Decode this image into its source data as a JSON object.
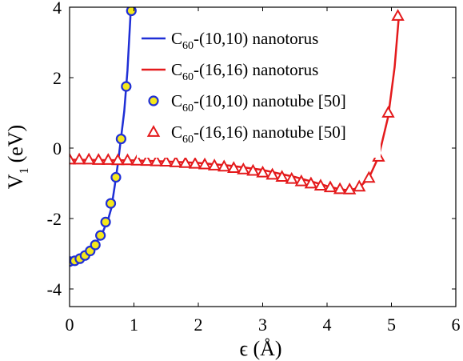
{
  "chart_data": {
    "type": "line",
    "xlabel": "ϵ (Å)",
    "ylabel": "V",
    "ylabel_sub": "1",
    "ylabel_unit": "(eV)",
    "xlim": [
      0,
      6
    ],
    "ylim": [
      -4.5,
      4
    ],
    "xticks": [
      0,
      1,
      2,
      3,
      4,
      5,
      6
    ],
    "yticks": [
      -4,
      -2,
      0,
      2,
      4
    ],
    "grid": false,
    "legend_position": "top-right",
    "series": [
      {
        "name": "C60-(10,10) nanotorus",
        "name_parts": [
          "C",
          "60",
          "-(10,10) nanotorus"
        ],
        "kind": "line",
        "color": "#1f2fd6",
        "x": [
          0,
          0.1,
          0.2,
          0.3,
          0.4,
          0.5,
          0.6,
          0.65,
          0.7,
          0.75,
          0.8,
          0.85,
          0.9,
          0.95
        ],
        "values": [
          -3.22,
          -3.18,
          -3.08,
          -2.92,
          -2.72,
          -2.45,
          -2.02,
          -1.7,
          -1.1,
          -0.45,
          0.3,
          1.05,
          2.2,
          3.9
        ]
      },
      {
        "name": "C60-(16,16) nanotorus",
        "name_parts": [
          "C",
          "60",
          "-(16,16) nanotorus"
        ],
        "kind": "line",
        "color": "#e41a1c",
        "x": [
          0,
          0.5,
          1.0,
          1.5,
          2.0,
          2.5,
          3.0,
          3.5,
          3.8,
          4.0,
          4.2,
          4.35,
          4.5,
          4.65,
          4.8,
          4.95,
          5.05,
          5.12
        ],
        "values": [
          -0.33,
          -0.34,
          -0.35,
          -0.38,
          -0.42,
          -0.5,
          -0.62,
          -0.82,
          -0.97,
          -1.08,
          -1.17,
          -1.2,
          -1.12,
          -0.85,
          -0.25,
          0.9,
          2.3,
          3.85
        ]
      },
      {
        "name": "C60-(10,10) nanotube [50]",
        "name_parts": [
          "C",
          "60",
          "-(10,10) nanotube [50]"
        ],
        "kind": "marker-circle",
        "color": "#1f2fd6",
        "fill": "#f5e81c",
        "x": [
          0,
          0.08,
          0.16,
          0.24,
          0.32,
          0.4,
          0.48,
          0.56,
          0.64,
          0.72,
          0.8,
          0.88,
          0.96
        ],
        "values": [
          -3.22,
          -3.2,
          -3.14,
          -3.05,
          -2.92,
          -2.75,
          -2.48,
          -2.1,
          -1.57,
          -0.83,
          0.26,
          1.75,
          3.9
        ]
      },
      {
        "name": "C60-(16,16) nanotube [50]",
        "name_parts": [
          "C",
          "60",
          "-(16,16) nanotube [50]"
        ],
        "kind": "marker-triangle",
        "color": "#e41a1c",
        "fill": "none",
        "x": [
          0,
          0.15,
          0.3,
          0.45,
          0.6,
          0.75,
          0.9,
          1.05,
          1.2,
          1.35,
          1.5,
          1.65,
          1.8,
          1.95,
          2.1,
          2.25,
          2.4,
          2.55,
          2.7,
          2.85,
          3.0,
          3.15,
          3.3,
          3.45,
          3.6,
          3.75,
          3.9,
          4.05,
          4.2,
          4.35,
          4.5,
          4.65,
          4.8,
          4.95,
          5.1
        ],
        "values": [
          -0.33,
          -0.33,
          -0.33,
          -0.34,
          -0.34,
          -0.35,
          -0.35,
          -0.36,
          -0.37,
          -0.38,
          -0.39,
          -0.41,
          -0.43,
          -0.45,
          -0.47,
          -0.5,
          -0.53,
          -0.57,
          -0.61,
          -0.65,
          -0.7,
          -0.76,
          -0.82,
          -0.88,
          -0.95,
          -1.01,
          -1.07,
          -1.12,
          -1.17,
          -1.18,
          -1.1,
          -0.85,
          -0.25,
          1.0,
          3.75
        ]
      }
    ]
  }
}
